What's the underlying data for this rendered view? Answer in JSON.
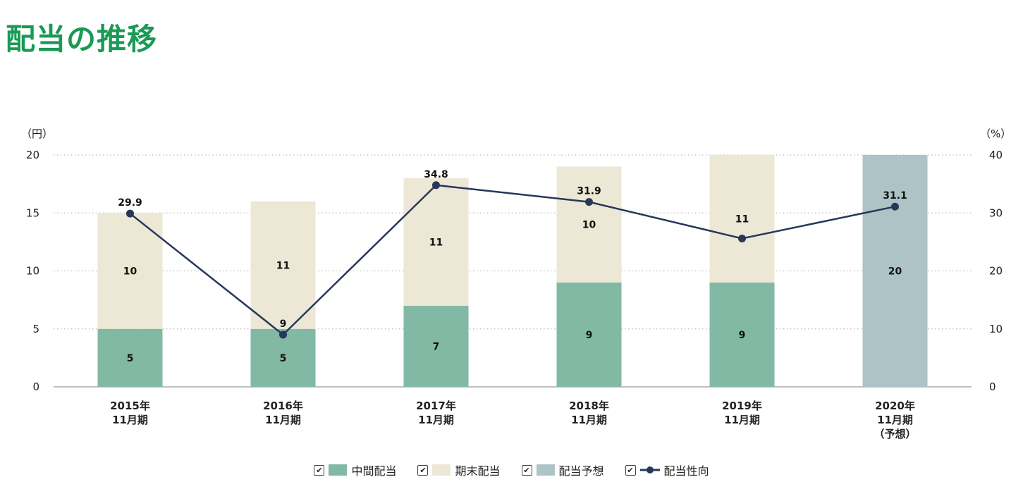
{
  "title": "配当の推移",
  "chart_data": {
    "type": "bar",
    "stacked": true,
    "title": "",
    "left_axis_unit": "（円）",
    "right_axis_unit": "（%）",
    "ylim": [
      0,
      20
    ],
    "y2lim": [
      0,
      40
    ],
    "yticks": [
      "0",
      "5",
      "10",
      "15",
      "20"
    ],
    "y2ticks": [
      "0",
      "10",
      "20",
      "30",
      "40"
    ],
    "grid": true,
    "categories": [
      [
        "2015年",
        "11月期"
      ],
      [
        "2016年",
        "11月期"
      ],
      [
        "2017年",
        "11月期"
      ],
      [
        "2018年",
        "11月期"
      ],
      [
        "2019年",
        "11月期"
      ],
      [
        "2020年",
        "11月期",
        "（予想）"
      ]
    ],
    "series": [
      {
        "name": "中間配当",
        "kind": "bar",
        "axis": "left",
        "color": "#82b9a5",
        "values": [
          5,
          5,
          7,
          9,
          9,
          null
        ]
      },
      {
        "name": "期末配当",
        "kind": "bar",
        "axis": "left",
        "color": "#ede8d6",
        "values": [
          10,
          11,
          11,
          10,
          11,
          null
        ]
      },
      {
        "name": "配当予想",
        "kind": "bar",
        "axis": "left",
        "color": "#adc3c6",
        "values": [
          null,
          null,
          null,
          null,
          null,
          20
        ]
      },
      {
        "name": "配当性向",
        "kind": "line",
        "axis": "right",
        "color": "#26375a",
        "values": [
          29.9,
          9,
          34.8,
          31.9,
          25.6,
          31.1
        ],
        "labels": [
          "29.9",
          "9",
          "34.8",
          "31.9",
          "",
          "31.1"
        ]
      }
    ],
    "legend_position": "bottom"
  },
  "legend": {
    "check_mark": "✔",
    "items": [
      "中間配当",
      "期末配当",
      "配当予想",
      "配当性向"
    ]
  }
}
